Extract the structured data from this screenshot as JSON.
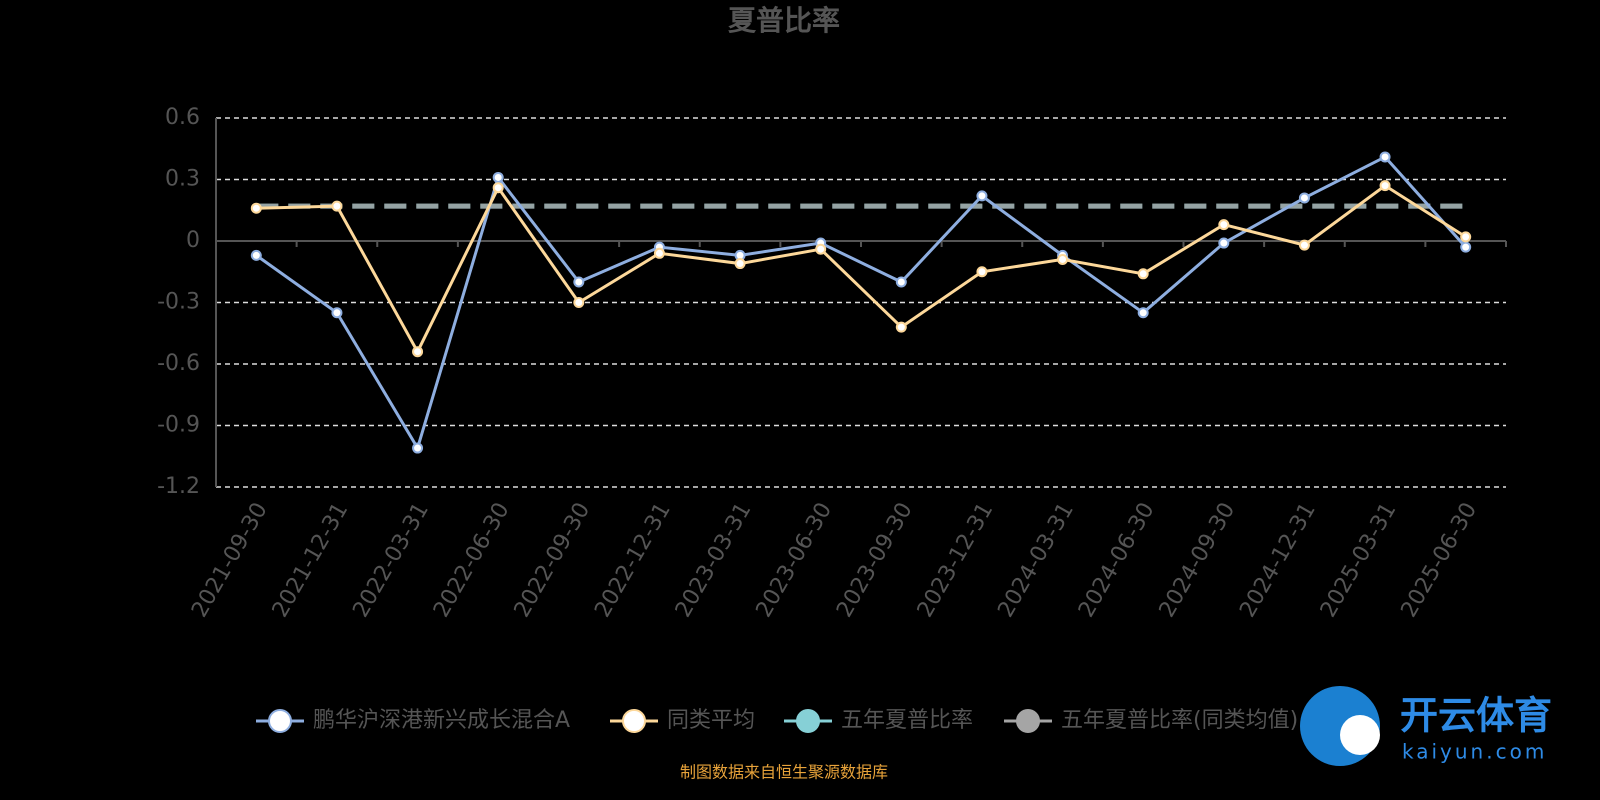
{
  "chart_data": {
    "type": "line",
    "title": "夏普比率",
    "categories": [
      "2021-09-30",
      "2021-12-31",
      "2022-03-31",
      "2022-06-30",
      "2022-09-30",
      "2022-12-31",
      "2023-03-31",
      "2023-06-30",
      "2023-09-30",
      "2023-12-31",
      "2024-03-31",
      "2024-06-30",
      "2024-09-30",
      "2024-12-31",
      "2025-03-31",
      "2025-06-30"
    ],
    "series": [
      {
        "name": "鹏华沪深港新兴成长混合A",
        "color": "#8eaee0",
        "values": [
          -0.07,
          -0.35,
          -1.01,
          0.31,
          -0.2,
          -0.03,
          -0.07,
          -0.01,
          -0.2,
          0.22,
          -0.07,
          -0.35,
          -0.01,
          0.21,
          0.41,
          -0.03
        ]
      },
      {
        "name": "同类平均",
        "color": "#fdd89a",
        "values": [
          0.16,
          0.17,
          -0.54,
          0.26,
          -0.3,
          -0.06,
          -0.11,
          -0.04,
          -0.42,
          -0.15,
          -0.09,
          -0.16,
          0.08,
          -0.02,
          0.27,
          0.02
        ]
      },
      {
        "name": "五年夏普比率",
        "color": "#86d0d6",
        "dashed": true,
        "values": [
          0.17,
          0.17,
          0.17,
          0.17,
          0.17,
          0.17,
          0.17,
          0.17,
          0.17,
          0.17,
          0.17,
          0.17,
          0.17,
          0.17,
          0.17,
          0.17
        ]
      },
      {
        "name": "五年夏普比率(同类均值)",
        "color": "#a5a5a5",
        "dashed": true,
        "values": [
          0.17,
          0.17,
          0.17,
          0.17,
          0.17,
          0.17,
          0.17,
          0.17,
          0.17,
          0.17,
          0.17,
          0.17,
          0.17,
          0.17,
          0.17,
          0.17
        ]
      }
    ],
    "ylim": [
      -1.2,
      0.6
    ],
    "yticks": [
      0.6,
      0.3,
      0,
      -0.3,
      -0.6,
      -0.9,
      -1.2
    ],
    "grid": true,
    "source": "制图数据来自恒生聚源数据库",
    "watermark": {
      "brand": "开云体育",
      "site": "kaiyun.com"
    }
  }
}
